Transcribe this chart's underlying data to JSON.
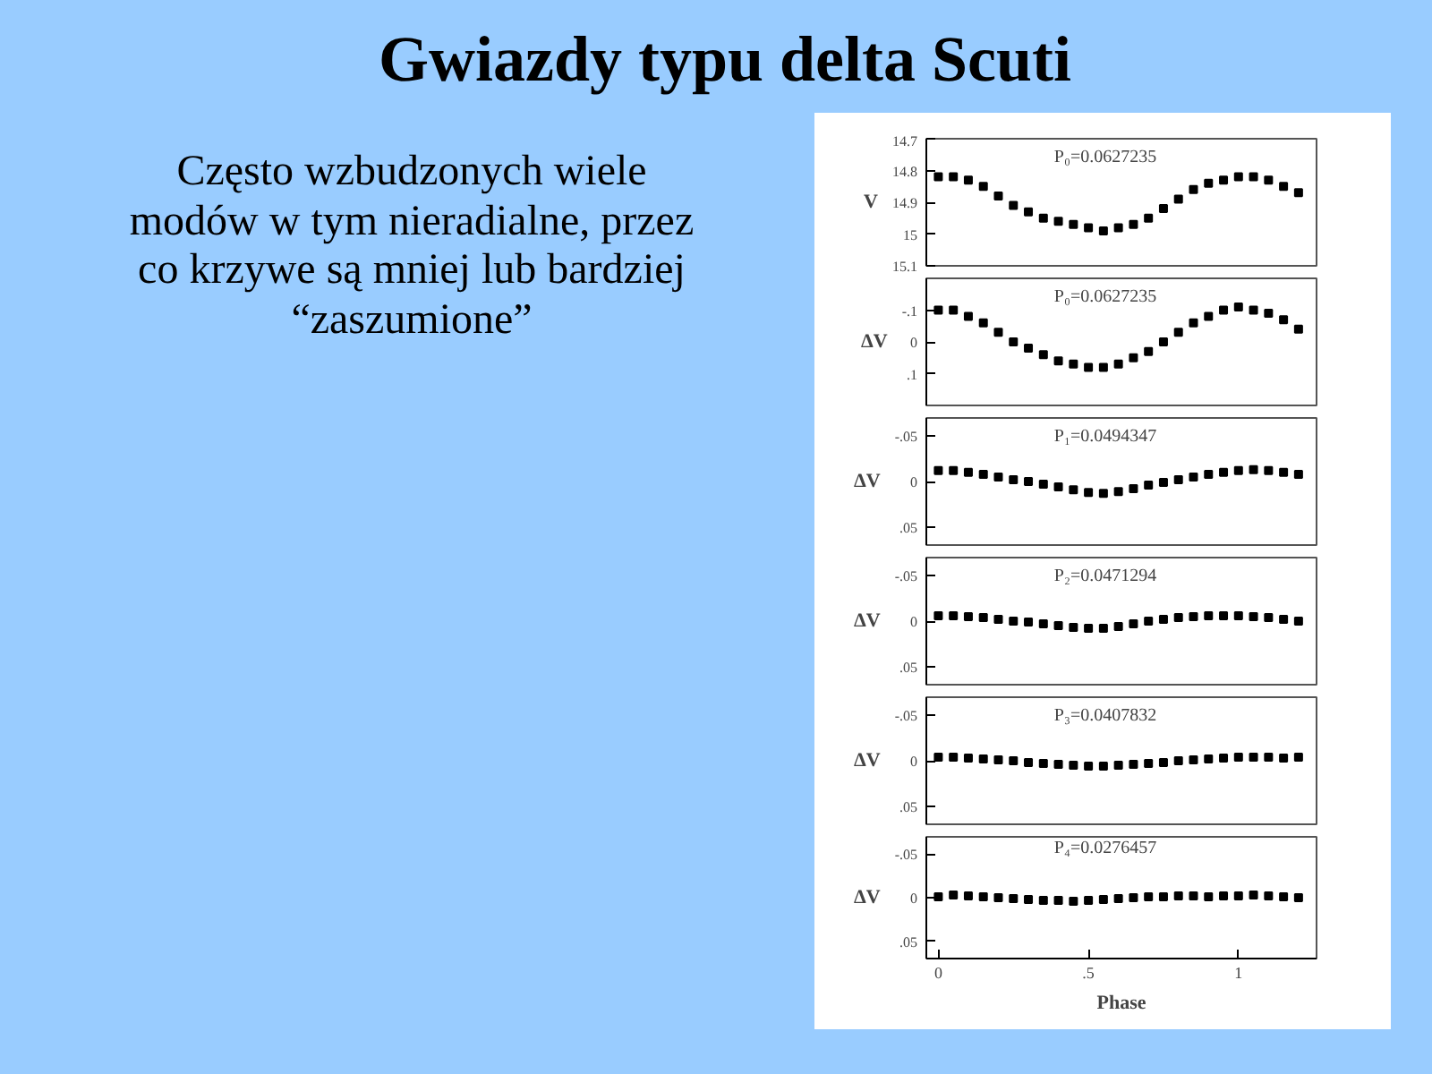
{
  "chart_data": [
    {
      "type": "scatter",
      "title": "Gwiazdy typu delta Scuti",
      "subtitle": "Często wzbudzonych wiele modów w tym nieradialne, przez co krzywe są mniej lub bardziej “zaszumione”",
      "annotations": [
        "P₀=0.0627235"
      ],
      "ylabel": "V",
      "marker": "square",
      "grid": false,
      "tick_labels": "y",
      "x": [
        0,
        0.05,
        0.1,
        0.15,
        0.2,
        0.25,
        0.3,
        0.35,
        0.4,
        0.45,
        0.5,
        0.55,
        0.6,
        0.65,
        0.7,
        0.75,
        0.8,
        0.85,
        0.9,
        0.95,
        1.0,
        1.05,
        1.1,
        1.15,
        1.2
      ],
      "series": [
        {
          "color": "#000000",
          "values": [
            14.82,
            14.82,
            14.83,
            14.85,
            14.88,
            14.91,
            14.93,
            14.95,
            14.96,
            14.97,
            14.98,
            14.99,
            14.98,
            14.97,
            14.95,
            14.92,
            14.89,
            14.86,
            14.84,
            14.83,
            14.82,
            14.82,
            14.83,
            14.85,
            14.87
          ]
        }
      ],
      "xlim": [
        -0.04,
        1.26
      ],
      "xticks": [
        {
          "value": 0,
          "label": null
        },
        {
          "value": 0.5,
          "label": null
        },
        {
          "value": 1,
          "label": null
        }
      ],
      "ylim": [
        15.1,
        14.7
      ],
      "yticks": [
        14.7,
        14.8,
        14.9,
        15,
        15.1
      ]
    },
    {
      "type": "scatter",
      "annotations": [
        "P₀=0.0627235"
      ],
      "ylabel": "ΔV",
      "marker": "square",
      "grid": false,
      "tick_labels": "y",
      "x": [
        0,
        0.05,
        0.1,
        0.15,
        0.2,
        0.25,
        0.3,
        0.35,
        0.4,
        0.45,
        0.5,
        0.55,
        0.6,
        0.65,
        0.7,
        0.75,
        0.8,
        0.85,
        0.9,
        0.95,
        1.0,
        1.05,
        1.1,
        1.15,
        1.2
      ],
      "series": [
        {
          "color": "#000000",
          "values": [
            -0.1,
            -0.1,
            -0.08,
            -0.06,
            -0.03,
            0,
            0.02,
            0.04,
            0.06,
            0.07,
            0.08,
            0.08,
            0.07,
            0.05,
            0.03,
            0,
            -0.03,
            -0.06,
            -0.08,
            -0.1,
            -0.11,
            -0.1,
            -0.09,
            -0.07,
            -0.04
          ]
        }
      ],
      "xlim": [
        -0.04,
        1.26
      ],
      "xticks": [
        {
          "value": 0,
          "label": null
        },
        {
          "value": 0.5,
          "label": null
        },
        {
          "value": 1,
          "label": null
        }
      ],
      "ylim": [
        0.2,
        -0.2
      ],
      "yticks": [
        {
          "value": -0.1,
          "label": "-.1"
        },
        {
          "value": 0,
          "label": "0"
        },
        {
          "value": 0.1,
          "label": ".1"
        }
      ]
    },
    {
      "type": "scatter",
      "annotations": [
        "P₁=0.0494347"
      ],
      "ylabel": "ΔV",
      "marker": "square",
      "grid": false,
      "tick_labels": "y",
      "x": [
        0,
        0.05,
        0.1,
        0.15,
        0.2,
        0.25,
        0.3,
        0.35,
        0.4,
        0.45,
        0.5,
        0.55,
        0.6,
        0.65,
        0.7,
        0.75,
        0.8,
        0.85,
        0.9,
        0.95,
        1.0,
        1.05,
        1.1,
        1.15,
        1.2
      ],
      "series": [
        {
          "color": "#000000",
          "values": [
            -0.012,
            -0.012,
            -0.01,
            -0.008,
            -0.005,
            -0.002,
            0,
            0.003,
            0.006,
            0.009,
            0.012,
            0.013,
            0.011,
            0.008,
            0.004,
            0.001,
            -0.002,
            -0.005,
            -0.008,
            -0.01,
            -0.012,
            -0.013,
            -0.012,
            -0.01,
            -0.008
          ]
        }
      ],
      "xlim": [
        -0.04,
        1.26
      ],
      "xticks": [
        {
          "value": 0,
          "label": null
        },
        {
          "value": 0.5,
          "label": null
        },
        {
          "value": 1,
          "label": null
        }
      ],
      "ylim": [
        0.07,
        -0.07
      ],
      "yticks": [
        {
          "value": -0.05,
          "label": "-.05"
        },
        {
          "value": 0,
          "label": "0"
        },
        {
          "value": 0.05,
          "label": ".05"
        }
      ]
    },
    {
      "type": "scatter",
      "annotations": [
        "P₂=0.0471294"
      ],
      "ylabel": "ΔV",
      "marker": "square",
      "grid": false,
      "tick_labels": "y",
      "x": [
        0,
        0.05,
        0.1,
        0.15,
        0.2,
        0.25,
        0.3,
        0.35,
        0.4,
        0.45,
        0.5,
        0.55,
        0.6,
        0.65,
        0.7,
        0.75,
        0.8,
        0.85,
        0.9,
        0.95,
        1.0,
        1.05,
        1.1,
        1.15,
        1.2
      ],
      "series": [
        {
          "color": "#000000",
          "values": [
            -0.006,
            -0.006,
            -0.005,
            -0.004,
            -0.002,
            0,
            0.001,
            0.003,
            0.005,
            0.007,
            0.008,
            0.008,
            0.006,
            0.003,
            0,
            -0.002,
            -0.004,
            -0.005,
            -0.006,
            -0.006,
            -0.006,
            -0.005,
            -0.004,
            -0.002,
            0
          ]
        }
      ],
      "xlim": [
        -0.04,
        1.26
      ],
      "xticks": [
        {
          "value": 0,
          "label": null
        },
        {
          "value": 0.5,
          "label": null
        },
        {
          "value": 1,
          "label": null
        }
      ],
      "ylim": [
        0.07,
        -0.07
      ],
      "yticks": [
        {
          "value": -0.05,
          "label": "-.05"
        },
        {
          "value": 0,
          "label": "0"
        },
        {
          "value": 0.05,
          "label": ".05"
        }
      ]
    },
    {
      "type": "scatter",
      "annotations": [
        "P₃=0.0407832"
      ],
      "ylabel": "ΔV",
      "marker": "square",
      "grid": false,
      "tick_labels": "y",
      "x": [
        0,
        0.05,
        0.1,
        0.15,
        0.2,
        0.25,
        0.3,
        0.35,
        0.4,
        0.45,
        0.5,
        0.55,
        0.6,
        0.65,
        0.7,
        0.75,
        0.8,
        0.85,
        0.9,
        0.95,
        1.0,
        1.05,
        1.1,
        1.15,
        1.2
      ],
      "series": [
        {
          "color": "#000000",
          "values": [
            -0.004,
            -0.004,
            -0.003,
            -0.002,
            -0.001,
            0,
            0.002,
            0.003,
            0.004,
            0.005,
            0.006,
            0.006,
            0.005,
            0.004,
            0.003,
            0.002,
            0,
            -0.001,
            -0.002,
            -0.003,
            -0.004,
            -0.004,
            -0.004,
            -0.003,
            -0.004
          ]
        }
      ],
      "xlim": [
        -0.04,
        1.26
      ],
      "xticks": [
        {
          "value": 0,
          "label": null
        },
        {
          "value": 0.5,
          "label": null
        },
        {
          "value": 1,
          "label": null
        }
      ],
      "ylim": [
        0.07,
        -0.07
      ],
      "yticks": [
        {
          "value": -0.05,
          "label": "-.05"
        },
        {
          "value": 0,
          "label": "0"
        },
        {
          "value": 0.05,
          "label": ".05"
        }
      ]
    },
    {
      "type": "scatter",
      "annotations": [
        "P₄=0.0276457"
      ],
      "xlabel": "Phase",
      "ylabel": "ΔV",
      "marker": "square",
      "grid": false,
      "x": [
        0,
        0.05,
        0.1,
        0.15,
        0.2,
        0.25,
        0.3,
        0.35,
        0.4,
        0.45,
        0.5,
        0.55,
        0.6,
        0.65,
        0.7,
        0.75,
        0.8,
        0.85,
        0.9,
        0.95,
        1.0,
        1.05,
        1.1,
        1.15,
        1.2
      ],
      "series": [
        {
          "color": "#000000",
          "values": [
            -0.001,
            -0.003,
            -0.002,
            -0.001,
            0,
            0.001,
            0.002,
            0.003,
            0.003,
            0.004,
            0.003,
            0.002,
            0.001,
            0,
            -0.001,
            -0.001,
            -0.002,
            -0.002,
            -0.001,
            -0.002,
            -0.002,
            -0.003,
            -0.002,
            -0.001,
            0
          ]
        }
      ],
      "xlim": [
        -0.04,
        1.26
      ],
      "xticks": [
        {
          "value": 0,
          "label": "0"
        },
        {
          "value": 0.5,
          "label": ".5"
        },
        {
          "value": 1,
          "label": "1"
        }
      ],
      "ylim": [
        0.07,
        -0.07
      ],
      "yticks": [
        {
          "value": -0.05,
          "label": "-.05"
        },
        {
          "value": 0,
          "label": "0"
        },
        {
          "value": 0.05,
          "label": ".05"
        }
      ]
    }
  ]
}
